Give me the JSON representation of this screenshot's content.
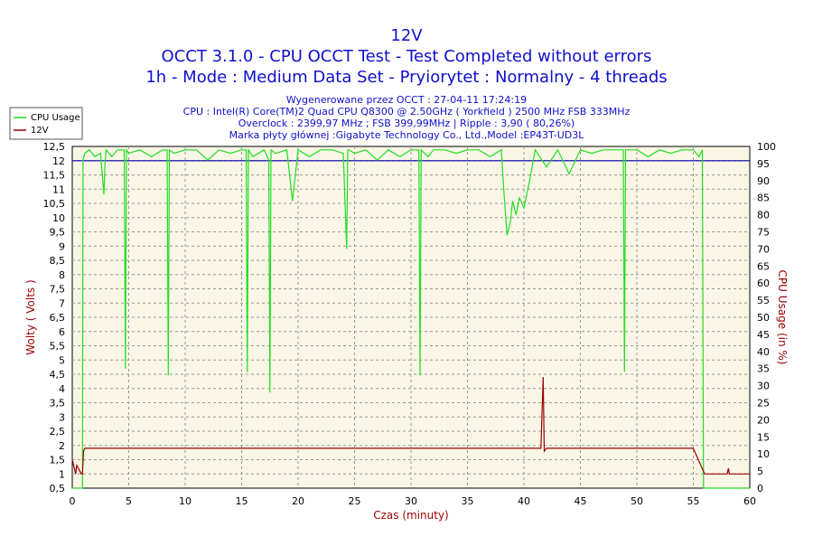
{
  "chart_data": {
    "type": "line",
    "title": "12V",
    "subtitle_1": "OCCT 3.1.0 - CPU OCCT Test - Test Completed without errors",
    "subtitle_2": "1h - Mode : Medium Data Set - Pryiorytet : Normalny - 4 threads",
    "info_lines": [
      "Wygenerowane przez OCCT : 27-04-11 17:24:19",
      "CPU : Intel(R) Core(TM)2 Quad CPU Q8300 @ 2.50GHz ( Yorkfield ) 2500 MHz FSB 333MHz",
      "Overclock : 2399,97 MHz ; FSB 399,99MHz | Ripple : 3,90 ( 80,26%)",
      "Marka płyty głównej :Gigabyte Technology Co., Ltd.,Model :EP43T-UD3L"
    ],
    "xlabel": "Czas (minuty)",
    "ylabel_left": "Wolty ( Volts )",
    "ylabel_right": "CPU Usage (in %)",
    "xlim": [
      0,
      60
    ],
    "ylim_left": [
      0.5,
      12.5
    ],
    "ylim_right": [
      0,
      100
    ],
    "x_ticks": [
      "0",
      "5",
      "10",
      "15",
      "20",
      "25",
      "30",
      "35",
      "40",
      "45",
      "50",
      "55",
      "60"
    ],
    "y_left_ticks": [
      "0,5",
      "1",
      "1,5",
      "2",
      "2,5",
      "3",
      "3,5",
      "4",
      "4,5",
      "5",
      "5,5",
      "6",
      "6,5",
      "7",
      "7,5",
      "8",
      "8,5",
      "9",
      "9,5",
      "10",
      "10,5",
      "11",
      "11,5",
      "12",
      "12,5"
    ],
    "y_right_ticks": [
      "0",
      "5",
      "10",
      "15",
      "20",
      "25",
      "30",
      "35",
      "40",
      "45",
      "50",
      "55",
      "60",
      "65",
      "70",
      "75",
      "80",
      "85",
      "90",
      "95",
      "100"
    ],
    "grid": true,
    "legend_position": "top-left",
    "series": [
      {
        "name": "CPU Usage",
        "axis": "right",
        "color": "#22dd22",
        "x": [
          0,
          0.9,
          0.95,
          1.1,
          1.5,
          2,
          2.5,
          2.8,
          2.9,
          3.0,
          3.5,
          4,
          4.6,
          4.7,
          4.8,
          5.0,
          6,
          7,
          8,
          8.4,
          8.5,
          8.6,
          9,
          10,
          11,
          12,
          13,
          14,
          15,
          15.4,
          15.5,
          15.6,
          16,
          17,
          17.4,
          17.5,
          17.6,
          18,
          19,
          19.5,
          20,
          21,
          22,
          23,
          24,
          24.3,
          24.4,
          24.5,
          25,
          26,
          27,
          28,
          29,
          30,
          30.7,
          30.8,
          30.9,
          31.5,
          32,
          33,
          34,
          35,
          36,
          37,
          38,
          38.2,
          38.5,
          38.8,
          39,
          39.3,
          39.6,
          40,
          40.5,
          41,
          42,
          43,
          44,
          45,
          46,
          47,
          48,
          48.8,
          48.9,
          49.0,
          50,
          51,
          52,
          53,
          54,
          55,
          55.5,
          55.8,
          55.9,
          56.0,
          57,
          58,
          59,
          60
        ],
        "values": [
          0,
          0,
          96,
          98,
          99,
          97,
          98,
          86,
          95,
          99,
          97,
          99,
          99,
          35,
          99,
          98,
          99,
          97,
          99,
          99,
          33,
          99,
          98,
          99,
          99,
          96,
          99,
          98,
          99,
          99,
          34,
          99,
          97,
          99,
          96,
          28,
          99,
          98,
          99,
          84,
          99,
          97,
          99,
          99,
          98,
          70,
          99,
          99,
          98,
          99,
          96,
          99,
          97,
          99,
          99,
          33,
          99,
          97,
          99,
          99,
          98,
          99,
          99,
          97,
          99,
          88,
          74,
          78,
          84,
          80,
          85,
          82,
          90,
          99,
          94,
          99,
          92,
          99,
          98,
          99,
          99,
          99,
          34,
          99,
          99,
          97,
          99,
          98,
          99,
          99,
          97,
          99,
          0,
          0,
          0,
          0,
          0,
          0
        ]
      },
      {
        "name": "12V",
        "axis": "left",
        "color": "#990000",
        "x": [
          0,
          0.3,
          0.4,
          0.8,
          0.9,
          1.0,
          1.1,
          5,
          10,
          15,
          20,
          25,
          30,
          35,
          40,
          41.5,
          41.7,
          41.8,
          42.0,
          45,
          50,
          55,
          56.0,
          56.1,
          58,
          58.1,
          58.2,
          60
        ],
        "values": [
          1.5,
          1.0,
          1.3,
          1.0,
          1.0,
          1.8,
          1.9,
          1.9,
          1.9,
          1.9,
          1.9,
          1.9,
          1.9,
          1.9,
          1.9,
          1.9,
          4.4,
          1.8,
          1.9,
          1.9,
          1.9,
          1.9,
          1.0,
          1.0,
          1.0,
          1.2,
          1.0,
          1.0
        ]
      },
      {
        "name": "12V",
        "axis": "left",
        "color": "#0000aa",
        "x": [
          0,
          60
        ],
        "values": [
          12,
          12
        ]
      }
    ]
  }
}
